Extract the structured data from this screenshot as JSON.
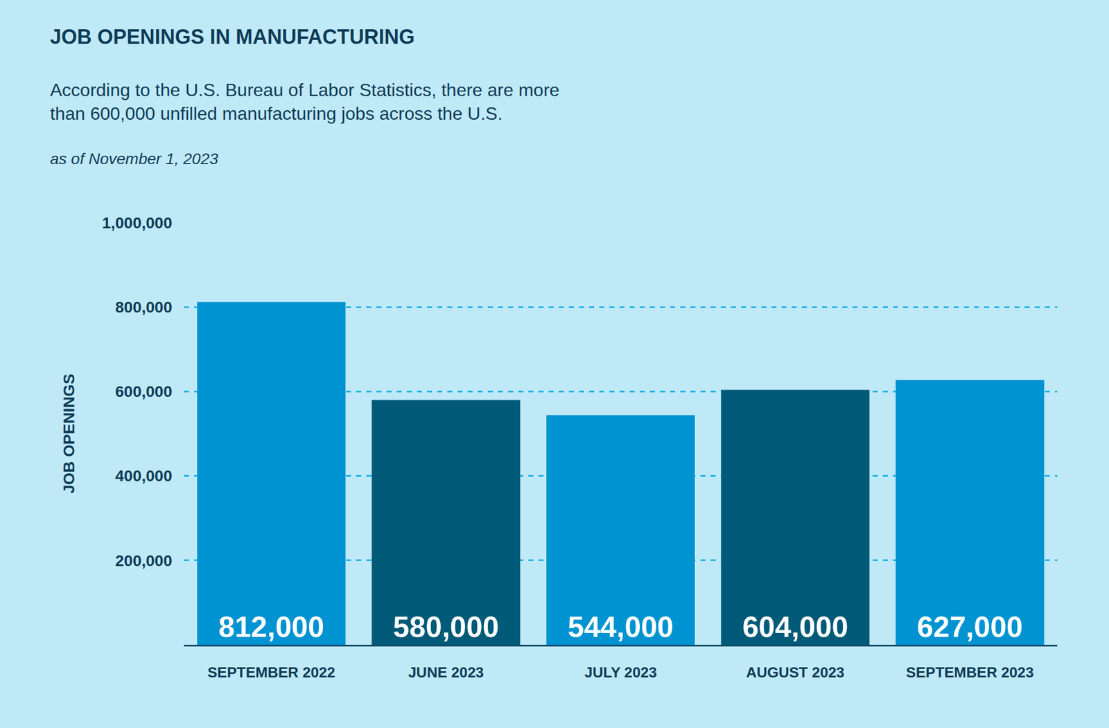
{
  "chart_data": {
    "type": "bar",
    "title": "JOB OPENINGS IN MANUFACTURING",
    "subtitle": [
      "According to the U.S. Bureau of Labor Statistics, there are more",
      "than 600,000 unfilled manufacturing jobs across the U.S."
    ],
    "annotations": [
      "as of November 1, 2023"
    ],
    "ylabel": "JOB OPENINGS",
    "categories": [
      "SEPTEMBER 2022",
      "JUNE 2023",
      "JULY 2023",
      "AUGUST 2023",
      "SEPTEMBER 2023"
    ],
    "values": [
      812000,
      580000,
      544000,
      604000,
      627000
    ],
    "value_labels": [
      "812,000",
      "580,000",
      "544,000",
      "604,000",
      "627,000"
    ],
    "colors": [
      "#0093d2",
      "#005a78",
      "#0093d2",
      "#005a78",
      "#0093d2"
    ],
    "ylim": [
      0,
      1000000
    ],
    "yticks": [
      {
        "value": 200000,
        "label": "200,000"
      },
      {
        "value": 400000,
        "label": "400,000"
      },
      {
        "value": 600000,
        "label": "600,000"
      },
      {
        "value": 800000,
        "label": "800,000"
      },
      {
        "value": 1000000,
        "label": "1,000,000"
      }
    ],
    "grid": true,
    "data_labels": true
  }
}
